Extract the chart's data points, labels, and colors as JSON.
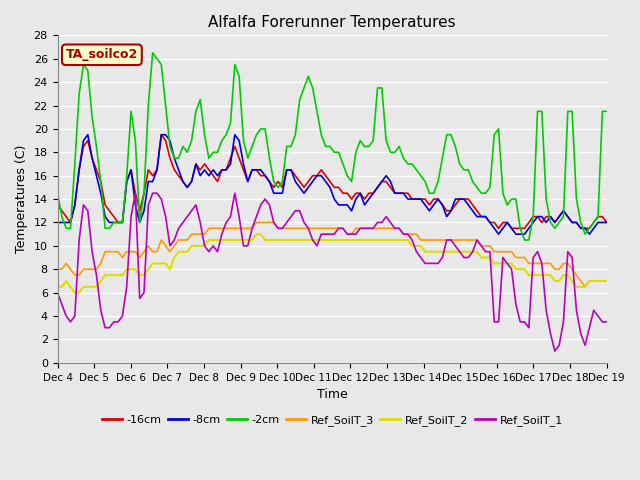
{
  "title": "Alfalfa Forerunner Temperatures",
  "xlabel": "Time",
  "ylabel": "Temperatures (C)",
  "ylim": [
    0,
    28
  ],
  "yticks": [
    0,
    2,
    4,
    6,
    8,
    10,
    12,
    14,
    16,
    18,
    20,
    22,
    24,
    26,
    28
  ],
  "xtick_labels": [
    "Dec 4",
    "Dec 5",
    "Dec 6",
    "Dec 7",
    "Dec 8",
    "Dec 9",
    "Dec 10",
    "Dec 11",
    "Dec 12",
    "Dec 13",
    "Dec 14",
    "Dec 15",
    "Dec 16",
    "Dec 17",
    "Dec 18",
    "Dec 19"
  ],
  "legend_labels": [
    "-16cm",
    "-8cm",
    "-2cm",
    "Ref_SoilT_3",
    "Ref_SoilT_2",
    "Ref_SoilT_1"
  ],
  "legend_colors": [
    "#dd0000",
    "#0000dd",
    "#00cc00",
    "#ff9900",
    "#dddd00",
    "#bb00bb"
  ],
  "annotation_text": "TA_soilco2",
  "annotation_box_facecolor": "#ffffcc",
  "annotation_box_edgecolor": "#aa0000",
  "annotation_text_color": "#aa0000",
  "bg_color": "#e8e8e8",
  "plot_bg_color": "#e8e8e8",
  "grid_color": "#ffffff",
  "n_days": 15,
  "points_per_day": 8,
  "series_neg16cm": [
    13.5,
    13.0,
    12.5,
    12.0,
    13.5,
    16.5,
    18.5,
    19.0,
    17.5,
    16.5,
    15.5,
    13.5,
    13.0,
    12.5,
    12.0,
    12.0,
    15.5,
    16.5,
    14.5,
    13.0,
    14.5,
    16.5,
    16.0,
    16.5,
    19.5,
    19.0,
    17.5,
    16.5,
    16.0,
    15.5,
    15.0,
    15.5,
    17.0,
    16.5,
    17.0,
    16.5,
    16.0,
    15.5,
    16.5,
    16.5,
    17.5,
    18.5,
    17.5,
    16.5,
    15.5,
    16.5,
    16.5,
    16.0,
    16.0,
    15.5,
    15.0,
    15.5,
    15.0,
    16.5,
    16.5,
    16.0,
    15.5,
    15.0,
    15.5,
    16.0,
    16.0,
    16.5,
    16.0,
    15.5,
    15.0,
    15.0,
    14.5,
    14.5,
    14.0,
    14.5,
    14.5,
    14.0,
    14.5,
    14.5,
    15.0,
    15.5,
    15.5,
    15.0,
    14.5,
    14.5,
    14.5,
    14.5,
    14.0,
    14.0,
    14.0,
    14.0,
    13.5,
    14.0,
    14.0,
    13.5,
    13.0,
    13.0,
    13.5,
    14.0,
    14.0,
    14.0,
    13.5,
    13.0,
    12.5,
    12.5,
    12.0,
    12.0,
    11.5,
    12.0,
    12.0,
    11.5,
    11.5,
    11.5,
    11.5,
    12.0,
    12.5,
    12.5,
    12.0,
    12.5,
    12.5,
    12.0,
    12.5,
    13.0,
    12.5,
    12.0,
    12.0,
    11.5,
    11.5,
    11.5,
    12.0,
    12.5,
    12.5,
    12.0
  ],
  "series_neg8cm": [
    12.0,
    12.0,
    12.0,
    12.0,
    13.5,
    16.5,
    19.0,
    19.5,
    17.5,
    16.0,
    14.5,
    12.5,
    12.0,
    12.0,
    12.0,
    12.0,
    15.5,
    16.5,
    13.5,
    12.0,
    13.0,
    15.5,
    15.5,
    16.5,
    19.5,
    19.5,
    19.0,
    17.5,
    16.5,
    15.5,
    15.0,
    15.5,
    17.0,
    16.0,
    16.5,
    16.0,
    16.5,
    16.0,
    16.5,
    16.5,
    17.0,
    19.5,
    19.0,
    17.0,
    15.5,
    16.5,
    16.5,
    16.5,
    16.0,
    15.5,
    14.5,
    14.5,
    14.5,
    16.5,
    16.5,
    15.5,
    15.0,
    14.5,
    15.0,
    15.5,
    16.0,
    16.0,
    15.5,
    15.0,
    14.0,
    13.5,
    13.5,
    13.5,
    13.0,
    14.0,
    14.5,
    13.5,
    14.0,
    14.5,
    15.0,
    15.5,
    16.0,
    15.5,
    14.5,
    14.5,
    14.5,
    14.0,
    14.0,
    14.0,
    14.0,
    13.5,
    13.0,
    13.5,
    14.0,
    13.5,
    12.5,
    13.0,
    14.0,
    14.0,
    14.0,
    13.5,
    13.0,
    12.5,
    12.5,
    12.5,
    12.0,
    11.5,
    11.0,
    11.5,
    12.0,
    11.5,
    11.0,
    11.0,
    11.0,
    11.5,
    12.0,
    12.5,
    12.5,
    12.0,
    12.5,
    12.0,
    12.5,
    13.0,
    12.5,
    12.0,
    12.0,
    11.5,
    11.5,
    11.0,
    11.5,
    12.0,
    12.0,
    12.0
  ],
  "series_neg2cm": [
    14.5,
    12.5,
    11.5,
    11.5,
    17.0,
    23.0,
    25.5,
    25.0,
    21.0,
    18.5,
    15.5,
    11.5,
    11.5,
    12.0,
    12.0,
    12.0,
    16.0,
    21.5,
    19.0,
    12.0,
    14.5,
    22.0,
    26.5,
    26.0,
    25.5,
    22.0,
    18.5,
    17.5,
    17.5,
    18.5,
    18.0,
    19.0,
    21.5,
    22.5,
    19.5,
    17.5,
    18.0,
    18.0,
    19.0,
    19.5,
    20.5,
    25.5,
    24.5,
    19.0,
    17.5,
    18.5,
    19.5,
    20.0,
    20.0,
    17.5,
    15.5,
    15.0,
    15.5,
    18.5,
    18.5,
    19.5,
    22.5,
    23.5,
    24.5,
    23.5,
    21.5,
    19.5,
    18.5,
    18.5,
    18.0,
    18.0,
    17.0,
    16.0,
    15.5,
    18.0,
    19.0,
    18.5,
    18.5,
    19.0,
    23.5,
    23.5,
    19.0,
    18.0,
    18.0,
    18.5,
    17.5,
    17.0,
    17.0,
    16.5,
    16.0,
    15.5,
    14.5,
    14.5,
    15.5,
    17.5,
    19.5,
    19.5,
    18.5,
    17.0,
    16.5,
    16.5,
    15.5,
    15.0,
    14.5,
    14.5,
    15.0,
    19.5,
    20.0,
    14.5,
    13.5,
    14.0,
    14.0,
    11.5,
    10.5,
    10.5,
    12.5,
    21.5,
    21.5,
    14.0,
    12.0,
    11.5,
    12.0,
    12.5,
    21.5,
    21.5,
    14.0,
    12.0,
    11.0,
    11.5,
    12.0,
    12.5,
    21.5,
    21.5
  ],
  "series_ref3": [
    8.0,
    8.0,
    8.5,
    8.0,
    7.5,
    7.5,
    8.0,
    8.0,
    8.0,
    8.0,
    8.5,
    9.5,
    9.5,
    9.5,
    9.5,
    9.0,
    9.5,
    9.5,
    9.5,
    9.0,
    9.5,
    10.0,
    9.5,
    9.5,
    10.5,
    10.0,
    9.5,
    10.0,
    10.5,
    10.5,
    10.5,
    11.0,
    11.0,
    11.0,
    11.0,
    11.5,
    11.5,
    11.5,
    11.5,
    11.5,
    11.5,
    11.5,
    11.5,
    11.5,
    11.5,
    11.5,
    12.0,
    12.0,
    12.0,
    12.0,
    12.0,
    11.5,
    11.5,
    11.5,
    11.5,
    11.5,
    11.5,
    11.5,
    11.5,
    11.5,
    11.5,
    11.5,
    11.5,
    11.5,
    11.5,
    11.5,
    11.5,
    11.0,
    11.0,
    11.5,
    11.5,
    11.5,
    11.5,
    11.5,
    11.5,
    11.5,
    11.5,
    11.5,
    11.5,
    11.5,
    11.0,
    11.0,
    11.0,
    11.0,
    10.5,
    10.5,
    10.5,
    10.5,
    10.5,
    10.5,
    10.5,
    10.5,
    10.5,
    10.5,
    10.5,
    10.5,
    10.5,
    10.5,
    10.0,
    10.0,
    10.0,
    9.5,
    9.5,
    9.5,
    9.5,
    9.5,
    9.0,
    9.0,
    9.0,
    8.5,
    8.5,
    8.5,
    8.5,
    8.5,
    8.5,
    8.0,
    8.0,
    8.5,
    8.5,
    8.0,
    7.5,
    7.0,
    6.5,
    7.0,
    7.0,
    7.0,
    7.0,
    7.0
  ],
  "series_ref2": [
    6.5,
    6.5,
    7.0,
    6.5,
    6.0,
    6.0,
    6.5,
    6.5,
    6.5,
    6.5,
    7.0,
    7.5,
    7.5,
    7.5,
    7.5,
    7.5,
    8.0,
    8.0,
    8.0,
    7.5,
    7.5,
    8.0,
    8.5,
    8.5,
    8.5,
    8.5,
    8.0,
    9.0,
    9.5,
    9.5,
    9.5,
    10.0,
    10.0,
    10.0,
    10.0,
    10.5,
    10.5,
    10.5,
    10.5,
    10.5,
    10.5,
    10.5,
    10.5,
    10.5,
    10.5,
    10.5,
    11.0,
    11.0,
    10.5,
    10.5,
    10.5,
    10.5,
    10.5,
    10.5,
    10.5,
    10.5,
    10.5,
    10.5,
    10.5,
    10.5,
    10.5,
    10.5,
    10.5,
    10.5,
    10.5,
    10.5,
    10.5,
    10.5,
    10.5,
    10.5,
    10.5,
    10.5,
    10.5,
    10.5,
    10.5,
    10.5,
    10.5,
    10.5,
    10.5,
    10.5,
    10.5,
    10.5,
    10.0,
    10.0,
    10.0,
    9.5,
    9.5,
    9.5,
    9.5,
    9.5,
    9.5,
    9.5,
    9.5,
    9.5,
    9.5,
    9.5,
    9.5,
    9.5,
    9.0,
    9.0,
    9.0,
    8.5,
    8.5,
    8.5,
    8.5,
    8.5,
    8.0,
    8.0,
    8.0,
    7.5,
    7.5,
    7.5,
    7.5,
    7.5,
    7.5,
    7.0,
    7.0,
    7.5,
    7.5,
    7.0,
    6.5,
    6.5,
    6.5,
    7.0,
    7.0,
    7.0,
    7.0,
    7.0
  ],
  "series_ref1": [
    6.0,
    5.0,
    4.0,
    3.5,
    4.0,
    10.5,
    13.5,
    13.0,
    9.5,
    7.5,
    4.5,
    3.0,
    3.0,
    3.5,
    3.5,
    4.0,
    6.5,
    12.5,
    14.5,
    5.5,
    6.0,
    13.5,
    14.5,
    14.5,
    14.0,
    12.5,
    10.0,
    10.5,
    11.5,
    12.0,
    12.5,
    13.0,
    13.5,
    12.0,
    10.0,
    9.5,
    10.0,
    9.5,
    11.0,
    12.0,
    12.5,
    14.5,
    12.5,
    10.0,
    10.0,
    11.5,
    12.5,
    13.5,
    14.0,
    13.5,
    12.0,
    11.5,
    11.5,
    12.0,
    12.5,
    13.0,
    13.0,
    12.0,
    11.5,
    10.5,
    10.0,
    11.0,
    11.0,
    11.0,
    11.0,
    11.5,
    11.5,
    11.0,
    11.0,
    11.0,
    11.5,
    11.5,
    11.5,
    11.5,
    12.0,
    12.0,
    12.5,
    12.0,
    11.5,
    11.5,
    11.0,
    11.0,
    10.5,
    9.5,
    9.0,
    8.5,
    8.5,
    8.5,
    8.5,
    9.0,
    10.5,
    10.5,
    10.0,
    9.5,
    9.0,
    9.0,
    9.5,
    10.5,
    10.0,
    9.5,
    9.5,
    3.5,
    3.5,
    9.0,
    8.5,
    8.0,
    5.0,
    3.5,
    3.5,
    3.0,
    9.0,
    9.5,
    8.5,
    4.5,
    2.5,
    1.0,
    1.5,
    3.5,
    9.5,
    9.0,
    4.5,
    2.5,
    1.5,
    3.0,
    4.5,
    4.0,
    3.5,
    3.5
  ]
}
